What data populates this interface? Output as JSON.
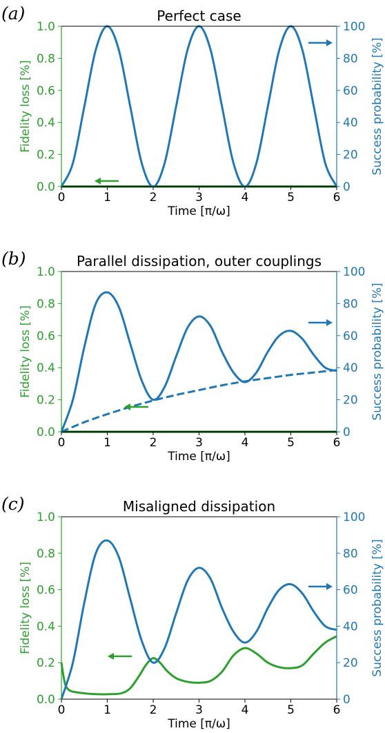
{
  "colors": {
    "green": "#2ca02c",
    "blue": "#1f77b4",
    "darkgreen": "#006400"
  },
  "chart_data": [
    {
      "type": "line",
      "panel_label": "(a)",
      "title": "Perfect case",
      "xlabel": "Time [π/ω]",
      "ylabel_left": "Fidelity loss [%]",
      "ylabel_right": "Success probability [%]",
      "xlim": [
        0,
        6
      ],
      "ylim_left": [
        0,
        1.0
      ],
      "ylim_right": [
        0,
        100
      ],
      "xticks": [
        "0",
        "1",
        "2",
        "3",
        "4",
        "5",
        "6"
      ],
      "yticks_left": [
        "0.0",
        "0.2",
        "0.4",
        "0.6",
        "0.8",
        "1.0"
      ],
      "yticks_right": [
        "0",
        "20",
        "40",
        "60",
        "80",
        "100"
      ],
      "legend_arrows": {
        "left_arrow": "bottom-left",
        "right_arrow": "top-right"
      },
      "series": [
        {
          "axis": "left",
          "color": "#006400",
          "style": "solid",
          "x": [
            0,
            1,
            2,
            3,
            4,
            5,
            6
          ],
          "y": [
            0,
            0,
            0,
            0,
            0,
            0,
            0
          ]
        },
        {
          "axis": "right",
          "color": "#1f77b4",
          "style": "solid",
          "x": [
            0,
            0.25,
            0.5,
            0.75,
            1,
            1.25,
            1.5,
            1.75,
            2,
            2.25,
            2.5,
            2.75,
            3,
            3.25,
            3.5,
            3.75,
            4,
            4.25,
            4.5,
            4.75,
            5,
            5.25,
            5.5,
            5.75,
            6
          ],
          "y": [
            0,
            14.6,
            50,
            85.4,
            100,
            85.4,
            50,
            14.6,
            0,
            14.6,
            50,
            85.4,
            100,
            85.4,
            50,
            14.6,
            0,
            14.6,
            50,
            85.4,
            100,
            85.4,
            50,
            14.6,
            0
          ]
        }
      ]
    },
    {
      "type": "line",
      "panel_label": "(b)",
      "title": "Parallel dissipation, outer couplings",
      "xlabel": "Time [π/ω]",
      "ylabel_left": "Fidelity loss [%]",
      "ylabel_right": "Success probability [%]",
      "xlim": [
        0,
        6
      ],
      "ylim_left": [
        0,
        1.0
      ],
      "ylim_right": [
        0,
        100
      ],
      "xticks": [
        "0",
        "1",
        "2",
        "3",
        "4",
        "5",
        "6"
      ],
      "yticks_left": [
        "0.0",
        "0.2",
        "0.4",
        "0.6",
        "0.8",
        "1.0"
      ],
      "yticks_right": [
        "0",
        "20",
        "40",
        "60",
        "80",
        "100"
      ],
      "legend_arrows": {
        "left_arrow": "bottom-left",
        "right_arrow": "middle-right"
      },
      "series": [
        {
          "axis": "left",
          "color": "#006400",
          "style": "solid",
          "x": [
            0,
            1,
            2,
            3,
            4,
            5,
            6
          ],
          "y": [
            0,
            0,
            0,
            0,
            0,
            0,
            0
          ]
        },
        {
          "axis": "right",
          "color": "#1f77b4",
          "style": "solid",
          "x": [
            0,
            0.25,
            0.5,
            0.75,
            1,
            1.25,
            1.5,
            1.75,
            2,
            2.25,
            2.5,
            2.75,
            3,
            3.25,
            3.5,
            3.75,
            4,
            4.25,
            4.5,
            4.75,
            5,
            5.25,
            5.5,
            5.75,
            6
          ],
          "y": [
            0,
            20,
            53,
            80,
            87,
            78,
            55,
            32,
            20,
            28,
            47,
            65,
            72,
            66,
            50,
            37,
            31,
            37,
            50,
            60,
            63,
            58,
            48,
            40,
            38
          ]
        },
        {
          "axis": "right",
          "color": "#1f77b4",
          "style": "dashed",
          "x": [
            0,
            0.5,
            1,
            1.5,
            2,
            2.5,
            3,
            3.5,
            4,
            4.5,
            5,
            5.5,
            6
          ],
          "y": [
            0,
            6,
            11,
            15.5,
            19.5,
            23,
            26,
            29,
            31.5,
            33.5,
            35.5,
            37,
            38.5
          ]
        }
      ]
    },
    {
      "type": "line",
      "panel_label": "(c)",
      "title": "Misaligned dissipation",
      "xlabel": "Time [π/ω]",
      "ylabel_left": "Fidelity loss [%]",
      "ylabel_right": "Success probability [%]",
      "xlim": [
        0,
        6
      ],
      "ylim_left": [
        0,
        1.0
      ],
      "ylim_right": [
        0,
        100
      ],
      "xticks": [
        "0",
        "1",
        "2",
        "3",
        "4",
        "5",
        "6"
      ],
      "yticks_left": [
        "0.0",
        "0.2",
        "0.4",
        "0.6",
        "0.8",
        "1.0"
      ],
      "yticks_right": [
        "0",
        "20",
        "40",
        "60",
        "80",
        "100"
      ],
      "legend_arrows": {
        "left_arrow": "lower-left",
        "right_arrow": "middle-right"
      },
      "series": [
        {
          "axis": "left",
          "color": "#2ca02c",
          "style": "solid",
          "x": [
            0,
            0.05,
            0.1,
            0.2,
            0.4,
            0.7,
            1,
            1.3,
            1.5,
            1.7,
            1.85,
            2,
            2.15,
            2.3,
            2.5,
            2.75,
            3,
            3.25,
            3.5,
            3.75,
            4,
            4.25,
            4.5,
            4.75,
            5,
            5.25,
            5.5,
            5.75,
            6
          ],
          "y": [
            0.2,
            0.12,
            0.07,
            0.045,
            0.035,
            0.028,
            0.027,
            0.032,
            0.06,
            0.13,
            0.19,
            0.225,
            0.2,
            0.155,
            0.115,
            0.095,
            0.09,
            0.1,
            0.15,
            0.24,
            0.28,
            0.25,
            0.2,
            0.175,
            0.17,
            0.185,
            0.25,
            0.31,
            0.345
          ]
        },
        {
          "axis": "right",
          "color": "#1f77b4",
          "style": "solid",
          "x": [
            0,
            0.25,
            0.5,
            0.75,
            1,
            1.25,
            1.5,
            1.75,
            2,
            2.25,
            2.5,
            2.75,
            3,
            3.25,
            3.5,
            3.75,
            4,
            4.25,
            4.5,
            4.75,
            5,
            5.25,
            5.5,
            5.75,
            6
          ],
          "y": [
            0,
            20,
            53,
            80,
            87,
            78,
            55,
            32,
            20,
            28,
            47,
            65,
            72,
            66,
            50,
            37,
            31,
            37,
            50,
            60,
            63,
            58,
            48,
            40,
            38
          ]
        }
      ]
    }
  ]
}
